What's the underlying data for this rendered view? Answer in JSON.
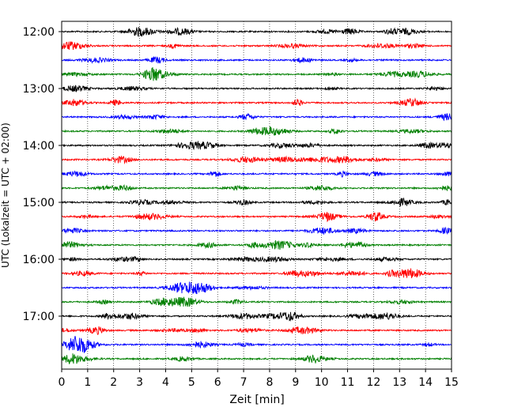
{
  "chart_data": {
    "type": "line",
    "title": "",
    "xlabel": "Zeit  [min]",
    "ylabel": "UTC (Lokalzeit = UTC + 02:00)",
    "xlim": [
      0,
      15
    ],
    "x_ticks": [
      "0",
      "1",
      "2",
      "3",
      "4",
      "5",
      "6",
      "7",
      "8",
      "9",
      "10",
      "11",
      "12",
      "13",
      "14",
      "15"
    ],
    "y_ticks": [
      "12:00",
      "13:00",
      "14:00",
      "15:00",
      "16:00",
      "17:00"
    ],
    "grid": "vertical dotted lines at each minute",
    "trace_start": "12:00",
    "trace_interval_minutes": 15,
    "trace_count": 24,
    "colors": [
      "#000000",
      "#ff0000",
      "#0000ff",
      "#008000"
    ]
  }
}
